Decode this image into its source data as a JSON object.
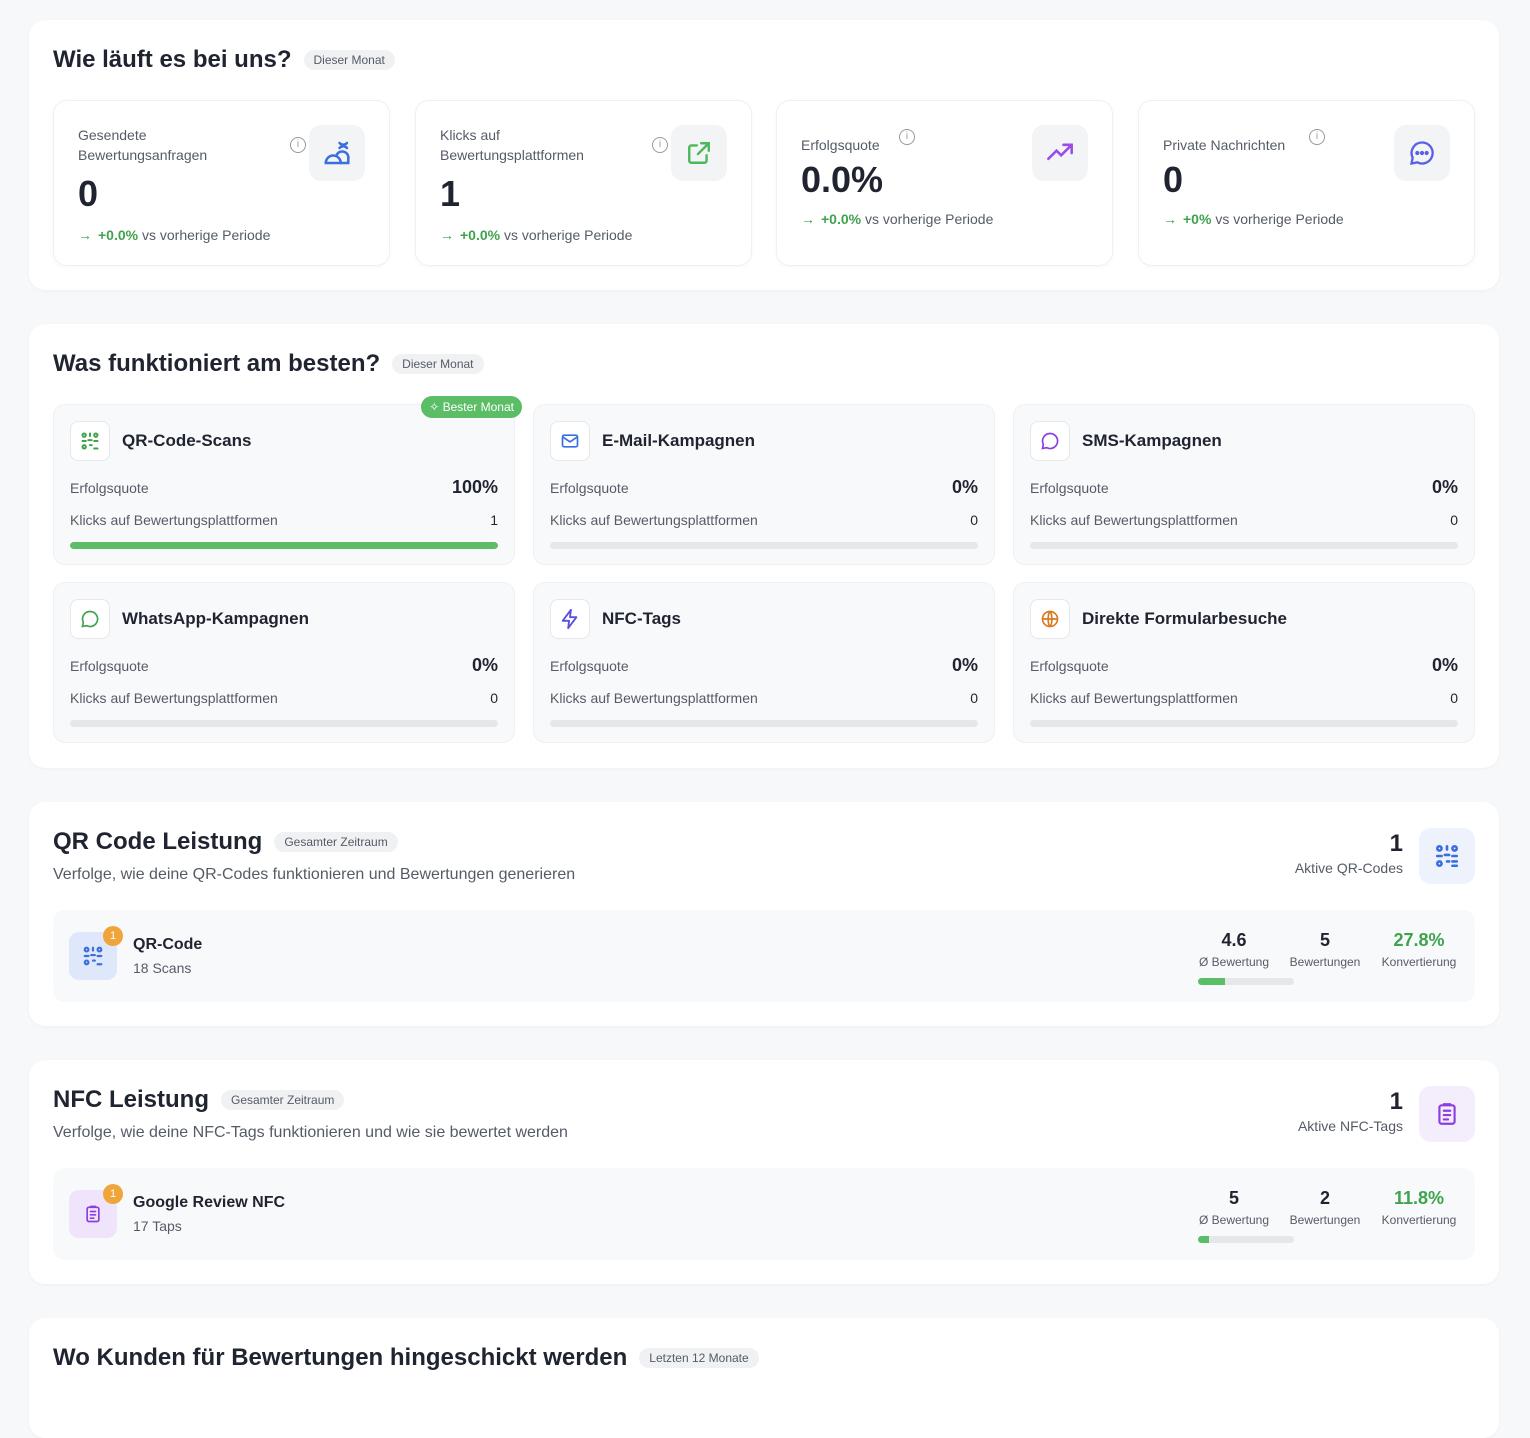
{
  "overview": {
    "title": "Wie läuft es bei uns?",
    "period": "Dieser Monat",
    "stats": [
      {
        "label": "Gesendete Bewertungsanfragen",
        "value": "0",
        "change": "+0.0%",
        "suffix": "vs vorherige Periode",
        "icon": "users-wave-icon"
      },
      {
        "label": "Klicks auf Bewertungsplattformen",
        "value": "1",
        "change": "+0.0%",
        "suffix": "vs vorherige Periode",
        "icon": "external-link-icon"
      },
      {
        "label": "Erfolgsquote",
        "value": "0.0%",
        "change": "+0.0%",
        "suffix": "vs vorherige Periode",
        "icon": "trending-up-icon"
      },
      {
        "label": "Private Nachrichten",
        "value": "0",
        "change": "+0%",
        "suffix": "vs vorherige Periode",
        "icon": "message-icon"
      }
    ]
  },
  "best": {
    "title": "Was funktioniert am besten?",
    "period": "Dieser Monat",
    "badge": "Bester Monat",
    "rate_label": "Erfolgsquote",
    "clicks_label": "Klicks auf Bewertungsplattformen",
    "campaigns": [
      {
        "name": "QR-Code-Scans",
        "rate": "100%",
        "clicks": "1",
        "progress": 100,
        "color": "#3fa34d"
      },
      {
        "name": "E-Mail-Kampagnen",
        "rate": "0%",
        "clicks": "0",
        "progress": 0,
        "color": "#3b6fe0"
      },
      {
        "name": "SMS-Kampagnen",
        "rate": "0%",
        "clicks": "0",
        "progress": 0,
        "color": "#8b3fe0"
      },
      {
        "name": "WhatsApp-Kampagnen",
        "rate": "0%",
        "clicks": "0",
        "progress": 0,
        "color": "#3fa34d"
      },
      {
        "name": "NFC-Tags",
        "rate": "0%",
        "clicks": "0",
        "progress": 0,
        "color": "#5a4fe0"
      },
      {
        "name": "Direkte Formularbesuche",
        "rate": "0%",
        "clicks": "0",
        "progress": 0,
        "color": "#d97a1f"
      }
    ]
  },
  "qr": {
    "title": "QR Code Leistung",
    "period": "Gesamter Zeitraum",
    "subtitle": "Verfolge, wie deine QR-Codes funktionieren und Bewertungen generieren",
    "active_count": "1",
    "active_label": "Aktive QR-Codes",
    "item": {
      "name": "QR-Code",
      "sub": "18 Scans",
      "badge": "1",
      "rating": "4.6",
      "rating_label": "Ø Bewertung",
      "reviews": "5",
      "reviews_label": "Bewertungen",
      "conversion": "27.8%",
      "conversion_label": "Konvertierung",
      "progress": 27.8
    }
  },
  "nfc": {
    "title": "NFC Leistung",
    "period": "Gesamter Zeitraum",
    "subtitle": "Verfolge, wie deine NFC-Tags funktionieren und wie sie bewertet werden",
    "active_count": "1",
    "active_label": "Aktive NFC-Tags",
    "item": {
      "name": "Google Review NFC",
      "sub": "17 Taps",
      "badge": "1",
      "rating": "5",
      "rating_label": "Ø Bewertung",
      "reviews": "2",
      "reviews_label": "Bewertungen",
      "conversion": "11.8%",
      "conversion_label": "Konvertierung",
      "progress": 11.8
    }
  },
  "destinations": {
    "title": "Wo Kunden für Bewertungen hingeschickt werden",
    "period": "Letzten 12 Monate"
  }
}
